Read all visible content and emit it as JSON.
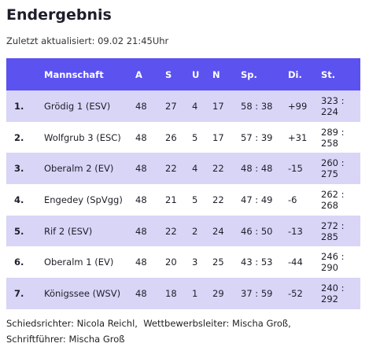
{
  "title": "Endergebnis",
  "updated": "Zuletzt aktualisiert: 09.02 21:45Uhr",
  "table": {
    "headers": [
      "",
      "Mannschaft",
      "A",
      "S",
      "U",
      "N",
      "Sp.",
      "Di.",
      "St."
    ],
    "rows": [
      [
        "1.",
        "Grödig 1 (ESV)",
        "48",
        "27",
        "4",
        "17",
        "58 : 38",
        "+99",
        "323 : 224"
      ],
      [
        "2.",
        "Wolfgrub 3 (ESC)",
        "48",
        "26",
        "5",
        "17",
        "57 : 39",
        "+31",
        "289 : 258"
      ],
      [
        "3.",
        "Oberalm 2 (EV)",
        "48",
        "22",
        "4",
        "22",
        "48 : 48",
        "-15",
        "260 : 275"
      ],
      [
        "4.",
        "Engedey (SpVgg)",
        "48",
        "21",
        "5",
        "22",
        "47 : 49",
        "-6",
        "262 : 268"
      ],
      [
        "5.",
        "Rif 2 (ESV)",
        "48",
        "22",
        "2",
        "24",
        "46 : 50",
        "-13",
        "272 : 285"
      ],
      [
        "6.",
        "Oberalm 1 (EV)",
        "48",
        "20",
        "3",
        "25",
        "43 : 53",
        "-44",
        "246 : 290"
      ],
      [
        "7.",
        "Königssee (WSV)",
        "48",
        "18",
        "1",
        "29",
        "37 : 59",
        "-52",
        "240 : 292"
      ]
    ]
  },
  "officials": {
    "referee_label": "Schiedsrichter:",
    "referee": "Nicola Reichl,",
    "competition_label": "Wettbewerbsleiter:",
    "competition": "Mischa Groß,",
    "recorder_label": "Schriftführer:",
    "recorder": "Mischa Groß"
  }
}
